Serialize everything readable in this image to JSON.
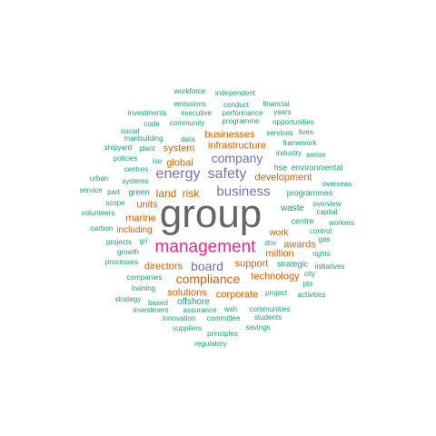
{
  "palette": {
    "teal": "#1b9e77",
    "orange": "#d95f02",
    "purple": "#7570b3",
    "pink": "#e7298a",
    "gray": "#666666"
  },
  "words": [
    {
      "text": "group",
      "color": "gray"
    },
    {
      "text": "management",
      "color": "pink"
    },
    {
      "text": "business",
      "color": "purple"
    },
    {
      "text": "safety",
      "color": "purple"
    },
    {
      "text": "energy",
      "color": "purple"
    },
    {
      "text": "company",
      "color": "purple"
    },
    {
      "text": "board",
      "color": "purple"
    },
    {
      "text": "compliance",
      "color": "orange"
    },
    {
      "text": "land",
      "color": "orange"
    },
    {
      "text": "risk",
      "color": "orange"
    },
    {
      "text": "infrastructure",
      "color": "orange"
    },
    {
      "text": "businesses",
      "color": "orange"
    },
    {
      "text": "system",
      "color": "orange"
    },
    {
      "text": "global",
      "color": "orange"
    },
    {
      "text": "development",
      "color": "orange"
    },
    {
      "text": "units",
      "color": "orange"
    },
    {
      "text": "marine",
      "color": "orange"
    },
    {
      "text": "directors",
      "color": "orange"
    },
    {
      "text": "support",
      "color": "orange"
    },
    {
      "text": "technology",
      "color": "orange"
    },
    {
      "text": "solutions",
      "color": "orange"
    },
    {
      "text": "corporate",
      "color": "orange"
    },
    {
      "text": "awards",
      "color": "orange"
    },
    {
      "text": "million",
      "color": "orange"
    },
    {
      "text": "work",
      "color": "orange"
    },
    {
      "text": "including",
      "color": "orange"
    },
    {
      "text": "waste",
      "color": "teal"
    },
    {
      "text": "centre",
      "color": "teal"
    },
    {
      "text": "hse",
      "color": "teal"
    },
    {
      "text": "environmental",
      "color": "teal"
    },
    {
      "text": "programmes",
      "color": "teal"
    },
    {
      "text": "strategic",
      "color": "teal"
    },
    {
      "text": "green",
      "color": "teal"
    },
    {
      "text": "offshore",
      "color": "teal"
    },
    {
      "text": "workforce",
      "color": "teal"
    },
    {
      "text": "independent",
      "color": "teal"
    },
    {
      "text": "emissions",
      "color": "teal"
    },
    {
      "text": "conduct",
      "color": "teal"
    },
    {
      "text": "financial",
      "color": "teal"
    },
    {
      "text": "investments",
      "color": "teal"
    },
    {
      "text": "executive",
      "color": "teal"
    },
    {
      "text": "performance",
      "color": "teal"
    },
    {
      "text": "years",
      "color": "teal"
    },
    {
      "text": "code",
      "color": "teal"
    },
    {
      "text": "community",
      "color": "teal"
    },
    {
      "text": "programme",
      "color": "teal"
    },
    {
      "text": "opportunities",
      "color": "teal"
    },
    {
      "text": "social",
      "color": "teal"
    },
    {
      "text": "services",
      "color": "teal"
    },
    {
      "text": "lives",
      "color": "teal"
    },
    {
      "text": "manbuilding",
      "color": "teal"
    },
    {
      "text": "data",
      "color": "teal"
    },
    {
      "text": "framework",
      "color": "teal"
    },
    {
      "text": "shipyard",
      "color": "teal"
    },
    {
      "text": "plant",
      "color": "teal"
    },
    {
      "text": "industry",
      "color": "teal"
    },
    {
      "text": "senior",
      "color": "teal"
    },
    {
      "text": "policies",
      "color": "teal"
    },
    {
      "text": "iso",
      "color": "teal"
    },
    {
      "text": "centres",
      "color": "teal"
    },
    {
      "text": "urban",
      "color": "teal"
    },
    {
      "text": "systems",
      "color": "teal"
    },
    {
      "text": "overseas",
      "color": "teal"
    },
    {
      "text": "service",
      "color": "teal"
    },
    {
      "text": "part",
      "color": "teal"
    },
    {
      "text": "overview",
      "color": "teal"
    },
    {
      "text": "scope",
      "color": "teal"
    },
    {
      "text": "capital",
      "color": "teal"
    },
    {
      "text": "volunteers",
      "color": "teal"
    },
    {
      "text": "workers",
      "color": "teal"
    },
    {
      "text": "carbon",
      "color": "teal"
    },
    {
      "text": "control",
      "color": "teal"
    },
    {
      "text": "projects",
      "color": "teal"
    },
    {
      "text": "gri",
      "color": "teal"
    },
    {
      "text": "dnv",
      "color": "teal"
    },
    {
      "text": "rights",
      "color": "teal"
    },
    {
      "text": "gas",
      "color": "teal"
    },
    {
      "text": "growth",
      "color": "teal"
    },
    {
      "text": "processes",
      "color": "teal"
    },
    {
      "text": "initiatives",
      "color": "teal"
    },
    {
      "text": "city",
      "color": "teal"
    },
    {
      "text": "companies",
      "color": "teal"
    },
    {
      "text": "pte",
      "color": "teal"
    },
    {
      "text": "training",
      "color": "teal"
    },
    {
      "text": "project",
      "color": "teal"
    },
    {
      "text": "activities",
      "color": "teal"
    },
    {
      "text": "strategy",
      "color": "teal"
    },
    {
      "text": "based",
      "color": "teal"
    },
    {
      "text": "wsh",
      "color": "teal"
    },
    {
      "text": "communities",
      "color": "teal"
    },
    {
      "text": "investment",
      "color": "teal"
    },
    {
      "text": "assurance",
      "color": "teal"
    },
    {
      "text": "innovation",
      "color": "teal"
    },
    {
      "text": "committee",
      "color": "teal"
    },
    {
      "text": "students",
      "color": "teal"
    },
    {
      "text": "suppliers",
      "color": "teal"
    },
    {
      "text": "savings",
      "color": "teal"
    },
    {
      "text": "principles",
      "color": "teal"
    },
    {
      "text": "regulatory",
      "color": "teal"
    }
  ]
}
